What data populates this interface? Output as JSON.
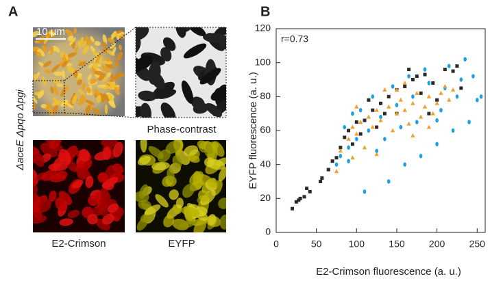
{
  "panel_a": {
    "letter": "A",
    "scale_bar": "10 µm",
    "strain": "ΔaceE Δpqo Δpgi",
    "phase_label": "Phase-contrast",
    "red_label": "E2-Crimson",
    "yellow_label": "EYFP"
  },
  "chart_data": {
    "type": "scatter",
    "panel": "B",
    "annotation": "r=0.73",
    "xlabel": "E2-Crimson fluorescence (a. u.)",
    "ylabel": "EYFP fluorescence (a. u.)",
    "xlim": [
      0,
      260
    ],
    "ylim": [
      0,
      120
    ],
    "xticks": [
      0,
      50,
      100,
      150,
      200,
      250
    ],
    "yticks": [
      0,
      20,
      40,
      60,
      80,
      100,
      120
    ],
    "series": [
      {
        "color": "#2a2a2a",
        "marker": "square",
        "x": [
          20,
          25,
          28,
          30,
          35,
          38,
          42,
          55,
          57,
          65,
          70,
          75,
          80,
          85,
          90,
          100,
          110,
          120,
          130,
          140,
          150,
          160,
          170,
          175,
          185,
          195,
          210,
          220,
          225,
          230,
          200,
          180,
          150,
          125,
          105,
          95,
          115,
          165,
          135,
          190
        ],
        "values": [
          14,
          18,
          19,
          20,
          21,
          26,
          24,
          30,
          32,
          37,
          42,
          44,
          50,
          56,
          60,
          65,
          66,
          72,
          76,
          80,
          84,
          86,
          90,
          92,
          93,
          88,
          96,
          95,
          98,
          85,
          78,
          82,
          70,
          62,
          58,
          52,
          78,
          96,
          70,
          70
        ]
      },
      {
        "color": "#1ba1e2",
        "marker": "circle",
        "x": [
          110,
          140,
          160,
          180,
          200,
          220,
          240,
          250,
          255,
          235,
          230,
          210,
          190,
          170,
          150,
          130,
          115,
          100,
          90,
          80,
          75,
          85,
          95,
          105,
          120,
          145,
          165,
          185,
          215,
          205,
          225,
          175,
          155,
          135,
          200,
          245,
          125,
          90
        ],
        "values": [
          24,
          30,
          40,
          45,
          52,
          60,
          65,
          78,
          80,
          102,
          90,
          85,
          88,
          80,
          75,
          68,
          60,
          55,
          50,
          45,
          40,
          62,
          70,
          72,
          80,
          86,
          92,
          96,
          98,
          72,
          80,
          65,
          62,
          55,
          66,
          92,
          48,
          42
        ]
      },
      {
        "color": "#f0a030",
        "marker": "triangle",
        "x": [
          75,
          80,
          90,
          95,
          100,
          105,
          110,
          115,
          120,
          125,
          130,
          140,
          145,
          150,
          155,
          160,
          165,
          170,
          175,
          180,
          185,
          190,
          195,
          200,
          205,
          210,
          215,
          220,
          100,
          135,
          150,
          170,
          190,
          125,
          95,
          160
        ],
        "values": [
          36,
          48,
          55,
          62,
          58,
          65,
          50,
          68,
          62,
          72,
          66,
          74,
          60,
          70,
          78,
          72,
          64,
          76,
          82,
          68,
          74,
          80,
          70,
          76,
          82,
          86,
          78,
          84,
          74,
          84,
          84,
          57,
          62,
          46,
          44,
          88
        ]
      }
    ]
  }
}
